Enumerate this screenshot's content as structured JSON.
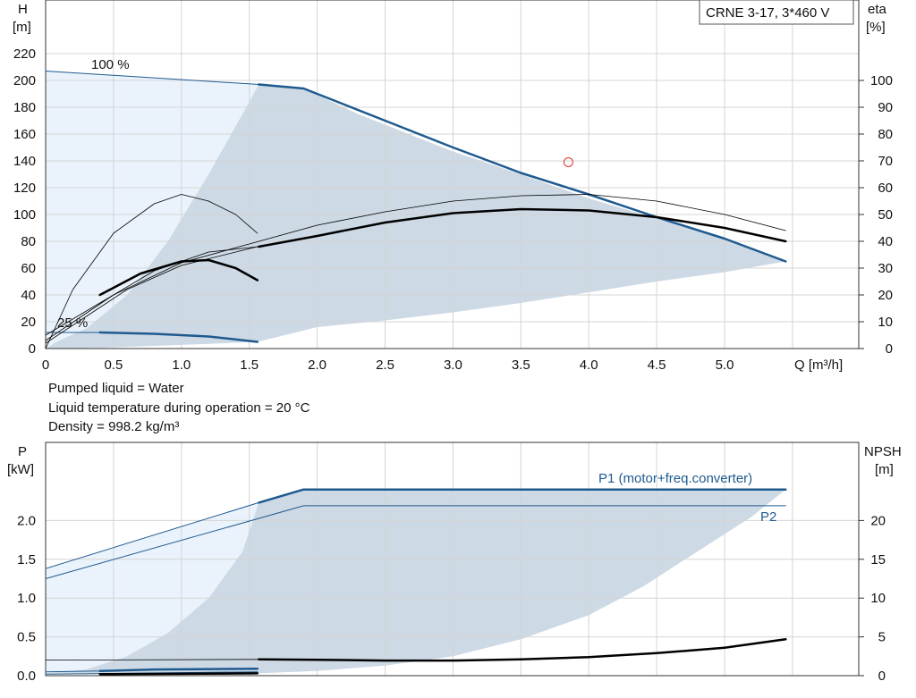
{
  "colors": {
    "region_light": "#eaf3fb",
    "region_dark": "#cdd9e5",
    "curve_blue": "#1f5a8f",
    "curve_black": "#000000",
    "duty_point": "#e03030",
    "grid": "#d4d4d4"
  },
  "title_box": "CRNE 3-17, 3*460 V",
  "notes": [
    "Pumped liquid = Water",
    "Liquid temperature during operation = 20 °C",
    "Density = 998.2 kg/m³"
  ],
  "chart_data": [
    {
      "type": "line",
      "name": "head-efficiency",
      "x_axis": {
        "label": "Q [m³/h]",
        "range": [
          0,
          6
        ],
        "ticks": [
          0,
          0.5,
          1.0,
          1.5,
          2.0,
          2.5,
          3.0,
          3.5,
          4.0,
          4.5,
          5.0
        ],
        "tick_labels": [
          "0",
          "0.5",
          "1.0",
          "1.5",
          "2.0",
          "2.5",
          "3.0",
          "3.5",
          "4.0",
          "4.5",
          "5.0"
        ]
      },
      "y_left": {
        "label_top": "H",
        "label_unit": "[m]",
        "range": [
          0,
          240
        ],
        "ticks": [
          0,
          20,
          40,
          60,
          80,
          100,
          120,
          140,
          160,
          180,
          200,
          220
        ]
      },
      "y_right": {
        "label_top": "eta",
        "label_unit": "[%]",
        "range": [
          0,
          120
        ],
        "ticks": [
          0,
          10,
          20,
          30,
          40,
          50,
          60,
          70,
          80,
          90,
          100
        ]
      },
      "curve_labels": [
        "100 %",
        "25 %"
      ],
      "duty_point": {
        "q": 3.85,
        "h": 139
      },
      "region_light_outline": [
        [
          0,
          207
        ],
        [
          1.57,
          197
        ],
        [
          1.45,
          175
        ],
        [
          1.2,
          130
        ],
        [
          0.9,
          80
        ],
        [
          0.6,
          40
        ],
        [
          0.3,
          15
        ],
        [
          0.1,
          6
        ],
        [
          0,
          0
        ]
      ],
      "region_dark_outline": [
        [
          0,
          0
        ],
        [
          0.1,
          6
        ],
        [
          0.3,
          15
        ],
        [
          0.6,
          40
        ],
        [
          0.9,
          80
        ],
        [
          1.2,
          130
        ],
        [
          1.45,
          175
        ],
        [
          1.57,
          197
        ],
        [
          1.9,
          194
        ],
        [
          2.3,
          175
        ],
        [
          3.0,
          147
        ],
        [
          3.5,
          130
        ],
        [
          4.0,
          112
        ],
        [
          4.5,
          97
        ],
        [
          5.0,
          83
        ],
        [
          5.45,
          65
        ],
        [
          5.0,
          57
        ],
        [
          4.5,
          50
        ],
        [
          4.0,
          42
        ],
        [
          3.5,
          34
        ],
        [
          3.0,
          27
        ],
        [
          2.5,
          21
        ],
        [
          2.0,
          16
        ],
        [
          1.56,
          5
        ],
        [
          1.2,
          3.5
        ],
        [
          0.8,
          2
        ],
        [
          0.4,
          0.5
        ],
        [
          0,
          0
        ]
      ],
      "series": [
        {
          "name": "head_100_thin",
          "style": "thin-blue",
          "points": [
            [
              0,
              207
            ],
            [
              1.57,
              197
            ]
          ]
        },
        {
          "name": "head_100",
          "style": "thick-blue",
          "points": [
            [
              1.57,
              197
            ],
            [
              1.9,
              194
            ],
            [
              2.5,
              170
            ],
            [
              3.0,
              150
            ],
            [
              3.5,
              131
            ],
            [
              4.0,
              115
            ],
            [
              4.5,
              98
            ],
            [
              5.0,
              82
            ],
            [
              5.45,
              65
            ]
          ]
        },
        {
          "name": "head_25",
          "style": "thick-blue",
          "points": [
            [
              0.4,
              12
            ],
            [
              0.8,
              11
            ],
            [
              1.2,
              9
            ],
            [
              1.56,
              5
            ]
          ]
        },
        {
          "name": "head_25_thin",
          "style": "thin-blue",
          "points": [
            [
              0,
              12
            ],
            [
              0.4,
              12
            ]
          ]
        },
        {
          "name": "eta_100",
          "style": "thick-black",
          "eta": true,
          "points": [
            [
              1.57,
              38
            ],
            [
              2.0,
              42
            ],
            [
              2.5,
              47
            ],
            [
              3.0,
              50.5
            ],
            [
              3.5,
              52
            ],
            [
              4.0,
              51.5
            ],
            [
              4.5,
              49
            ],
            [
              5.0,
              45
            ],
            [
              5.45,
              40
            ]
          ]
        },
        {
          "name": "eta_100_thin",
          "style": "thin-black",
          "eta": true,
          "points": [
            [
              0,
              5
            ],
            [
              0.4,
              17
            ],
            [
              0.8,
              29
            ],
            [
              1.2,
              36
            ],
            [
              1.57,
              38
            ]
          ]
        },
        {
          "name": "eta_total",
          "style": "thin-black",
          "eta": true,
          "points": [
            [
              0,
              3
            ],
            [
              0.5,
              20
            ],
            [
              1.0,
              32
            ],
            [
              1.5,
              39
            ],
            [
              2.0,
              46
            ],
            [
              2.5,
              51
            ],
            [
              3.0,
              55
            ],
            [
              3.5,
              57
            ],
            [
              4.0,
              57.5
            ],
            [
              4.5,
              55
            ],
            [
              5.0,
              50
            ],
            [
              5.45,
              44
            ]
          ]
        },
        {
          "name": "eta_25",
          "style": "thick-black",
          "eta": true,
          "points": [
            [
              0.4,
              20
            ],
            [
              0.7,
              28
            ],
            [
              1.0,
              32.5
            ],
            [
              1.2,
              33
            ],
            [
              1.4,
              30
            ],
            [
              1.56,
              25.5
            ]
          ]
        },
        {
          "name": "eta_25_thin",
          "style": "thin-black",
          "eta": true,
          "points": [
            [
              0,
              0
            ],
            [
              0.2,
              22
            ],
            [
              0.5,
              43
            ],
            [
              0.8,
              54
            ],
            [
              1.0,
              57.5
            ],
            [
              1.2,
              55
            ],
            [
              1.4,
              50
            ],
            [
              1.56,
              43
            ]
          ]
        },
        {
          "name": "eta_mid_thin",
          "style": "thin-black",
          "eta": true,
          "points": [
            [
              0,
              2
            ],
            [
              0.3,
              12
            ],
            [
              0.6,
              22
            ],
            [
              1.0,
              31
            ],
            [
              1.56,
              38
            ]
          ]
        }
      ]
    },
    {
      "type": "line",
      "name": "power-npsh",
      "x_axis": {
        "range": [
          0,
          6
        ]
      },
      "y_left": {
        "label_top": "P",
        "label_unit": "[kW]",
        "range": [
          0,
          2.7
        ],
        "ticks": [
          0.0,
          0.5,
          1.0,
          1.5,
          2.0
        ],
        "tick_labels": [
          "0.0",
          "0.5",
          "1.0",
          "1.5",
          "2.0"
        ]
      },
      "y_right": {
        "label_top": "NPSH",
        "label_unit": "[m]",
        "range": [
          0,
          27
        ],
        "ticks": [
          0,
          5,
          10,
          15,
          20
        ],
        "tick_labels": [
          "0",
          "5",
          "10",
          "15",
          "20"
        ]
      },
      "region_light_outline": [
        [
          0,
          1.38
        ],
        [
          1.57,
          2.23
        ],
        [
          1.45,
          1.6
        ],
        [
          1.2,
          1.0
        ],
        [
          0.9,
          0.55
        ],
        [
          0.6,
          0.25
        ],
        [
          0.3,
          0.08
        ],
        [
          0,
          0.03
        ]
      ],
      "region_dark_outline": [
        [
          0,
          0.03
        ],
        [
          0.3,
          0.08
        ],
        [
          0.6,
          0.25
        ],
        [
          0.9,
          0.55
        ],
        [
          1.2,
          1.0
        ],
        [
          1.45,
          1.6
        ],
        [
          1.57,
          2.23
        ],
        [
          1.9,
          2.4
        ],
        [
          5.45,
          2.4
        ],
        [
          5.2,
          2.05
        ],
        [
          4.8,
          1.6
        ],
        [
          4.4,
          1.15
        ],
        [
          4.0,
          0.78
        ],
        [
          3.5,
          0.47
        ],
        [
          3.0,
          0.25
        ],
        [
          2.5,
          0.13
        ],
        [
          2.0,
          0.06
        ],
        [
          1.56,
          0.03
        ],
        [
          0,
          0.03
        ]
      ],
      "series": [
        {
          "name": "P1 (motor+freq.converter)",
          "label": true,
          "style": "thick-blue",
          "points": [
            [
              1.57,
              2.23
            ],
            [
              1.9,
              2.4
            ],
            [
              5.45,
              2.4
            ]
          ]
        },
        {
          "name": "P1_thin",
          "style": "thin-blue",
          "points": [
            [
              0,
              1.38
            ],
            [
              1.57,
              2.23
            ]
          ]
        },
        {
          "name": "P2",
          "label": true,
          "style": "thin-blue",
          "points": [
            [
              0,
              1.25
            ],
            [
              1.9,
              2.19
            ],
            [
              5.45,
              2.19
            ]
          ]
        },
        {
          "name": "P_25_thick",
          "style": "thick-blue",
          "points": [
            [
              0.4,
              0.06
            ],
            [
              0.8,
              0.08
            ],
            [
              1.56,
              0.09
            ]
          ]
        },
        {
          "name": "P_25_thin",
          "style": "thin-blue",
          "points": [
            [
              0,
              0.05
            ],
            [
              0.4,
              0.06
            ]
          ]
        },
        {
          "name": "P2_25_thin",
          "style": "thin-blue",
          "points": [
            [
              0,
              0.02
            ],
            [
              1.56,
              0.05
            ]
          ]
        },
        {
          "name": "P2_25_black",
          "style": "thick-black",
          "points": [
            [
              0.4,
              0.02
            ],
            [
              1.56,
              0.03
            ]
          ]
        },
        {
          "name": "npsh",
          "style": "thick-black",
          "npsh": true,
          "points": [
            [
              1.57,
              2.1
            ],
            [
              2.0,
              2.05
            ],
            [
              2.5,
              1.95
            ],
            [
              3.0,
              1.95
            ],
            [
              3.5,
              2.1
            ],
            [
              4.0,
              2.4
            ],
            [
              4.5,
              2.9
            ],
            [
              5.0,
              3.6
            ],
            [
              5.45,
              4.7
            ]
          ]
        },
        {
          "name": "npsh_thin",
          "style": "thin-black",
          "npsh": true,
          "points": [
            [
              0,
              2.0
            ],
            [
              1.57,
              2.1
            ]
          ]
        }
      ],
      "series_labels": {
        "p1": "P1 (motor+freq.converter)",
        "p2": "P2"
      }
    }
  ]
}
